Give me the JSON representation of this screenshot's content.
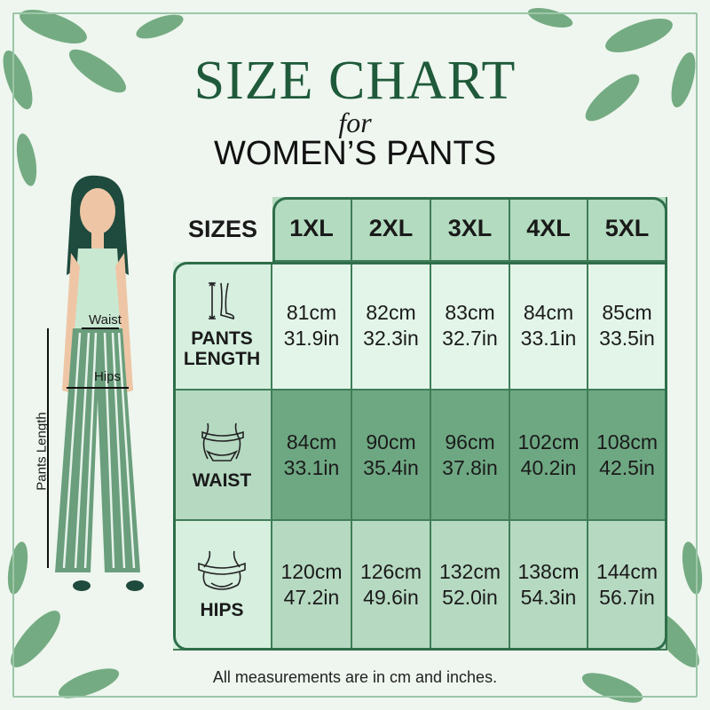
{
  "title": "SIZE CHART",
  "for": "for",
  "subtitle": "WOMEN’S PANTS",
  "colors": {
    "accent": "#1f5a3a",
    "header": "#b3dbbf",
    "row_length": "#e3f5e9",
    "row_waist": "#6ea883",
    "row_hips": "#b6d9c1",
    "border": "#2f6e4a"
  },
  "figure": {
    "waist_label": "Waist",
    "hips_label": "Hips",
    "length_label": "Pants Length"
  },
  "table": {
    "sizes_label": "SIZES",
    "sizes": [
      "1XL",
      "2XL",
      "3XL",
      "4XL",
      "5XL"
    ],
    "rows": [
      {
        "label1": "PANTS",
        "label2": "LENGTH",
        "icon": "leg-length-icon",
        "values": [
          [
            "81cm",
            "31.9in"
          ],
          [
            "82cm",
            "32.3in"
          ],
          [
            "83cm",
            "32.7in"
          ],
          [
            "84cm",
            "33.1in"
          ],
          [
            "85cm",
            "33.5in"
          ]
        ]
      },
      {
        "label1": "WAIST",
        "label2": "",
        "icon": "waist-tape-icon",
        "values": [
          [
            "84cm",
            "33.1in"
          ],
          [
            "90cm",
            "35.4in"
          ],
          [
            "96cm",
            "37.8in"
          ],
          [
            "102cm",
            "40.2in"
          ],
          [
            "108cm",
            "42.5in"
          ]
        ]
      },
      {
        "label1": "HIPS",
        "label2": "",
        "icon": "hips-tape-icon",
        "values": [
          [
            "120cm",
            "47.2in"
          ],
          [
            "126cm",
            "49.6in"
          ],
          [
            "132cm",
            "52.0in"
          ],
          [
            "138cm",
            "54.3in"
          ],
          [
            "144cm",
            "56.7in"
          ]
        ]
      }
    ]
  },
  "footer": "All measurements are in cm and inches."
}
